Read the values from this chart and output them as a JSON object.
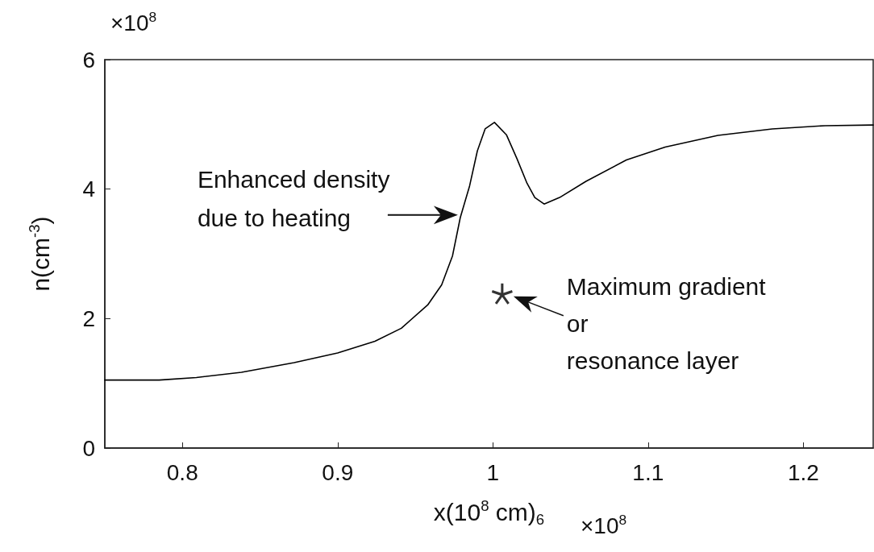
{
  "chart_data": {
    "type": "line",
    "xlabel": "x(10$^{8}$ cm)$_{6}$",
    "ylabel": "n(cm$^{-3}$)",
    "xlim": [
      0.75,
      1.245
    ],
    "xticks": [
      0.8,
      0.9,
      1,
      1.1,
      1.2
    ],
    "ylim": [
      0,
      6
    ],
    "yticks": [
      0,
      2,
      4,
      6
    ],
    "grid": false,
    "series": [
      {
        "type": "line",
        "color": "#000000",
        "marker": "none",
        "line_style": "solid",
        "x": [
          0.75,
          0.785,
          0.809,
          0.838,
          0.872,
          0.9,
          0.924,
          0.941,
          0.958,
          0.967,
          0.974,
          0.979,
          0.985,
          0.99,
          0.995,
          1.001,
          1.0087,
          1.0155,
          1.022,
          1.027,
          1.033,
          1.043,
          1.06,
          1.086,
          1.111,
          1.145,
          1.18,
          1.214,
          1.245
        ],
        "values": [
          1.05,
          1.05,
          1.09,
          1.17,
          1.32,
          1.47,
          1.65,
          1.85,
          2.21,
          2.52,
          2.97,
          3.56,
          4.05,
          4.59,
          4.93,
          5.03,
          4.84,
          4.47,
          4.09,
          3.87,
          3.77,
          3.87,
          4.12,
          4.45,
          4.65,
          4.83,
          4.93,
          4.98,
          4.99
        ]
      },
      {
        "type": "scatter",
        "color": "#000000",
        "marker": "star",
        "x": [
          1.006
        ],
        "values": [
          2.38
        ]
      }
    ],
    "annotations": [
      {
        "text": "Enhanced density\ndue to heating",
        "x": 0.979,
        "y": 3.6
      },
      {
        "text": "Maximum gradient\nor\nresonance layer",
        "x": 1.006,
        "y": 2.38
      },
      "×10$^{8}$",
      "×10$^{8}$"
    ]
  }
}
